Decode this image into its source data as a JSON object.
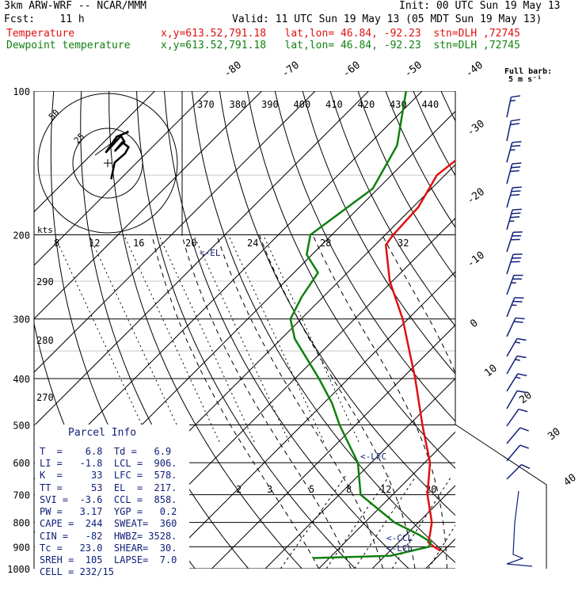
{
  "header": {
    "model": "3km ARW-WRF -- NCAR/MMM",
    "init": "Init: 00 UTC Sun 19 May 13",
    "fcst": "Fcst:    11 h",
    "valid": "Valid: 11 UTC Sun 19 May 13 (05 MDT Sun 19 May 13)",
    "temp_label": "Temperature",
    "temp_info": "x,y=613.52,791.18   lat,lon= 46.84, -92.23  stn=DLH ,72745",
    "dew_label": "Dewpoint temperature",
    "dew_info": "x,y=613.52,791.18   lat,lon= 46.84, -92.23  stn=DLH ,72745"
  },
  "barb_key": {
    "line1": "Full barb:",
    "line2": "5 m s⁻¹"
  },
  "hodograph": {
    "units": "kts",
    "ring_labels": [
      "25",
      "50"
    ]
  },
  "parcel": {
    "title": "Parcel Info",
    "rows": [
      "T  =    6.8  Td =   6.9",
      "LI =   -1.8  LCL =  906.",
      "K  =     33  LFC =  578.",
      "TT =     53  EL  =  217.",
      "SVI =  -3.6  CCL =  858.",
      "PW =   3.17  YGP =   0.2",
      "CAPE =  244  SWEAT=  360",
      "CIN =   -82  HWBZ= 3528.",
      "Tc =   23.0  SHEAR=  30.",
      "SREH =  105  LAPSE=  7.0",
      "CELL = 232/15"
    ]
  },
  "markers": {
    "el": "<-EL",
    "lfc": "<-LFC",
    "ccl": "<-CCL",
    "lcl": "<-LCL"
  },
  "colors": {
    "temperature": "#e01010",
    "dewpoint": "#108010",
    "barbs": "#10207a",
    "info": "#10207a"
  },
  "chart_data": {
    "type": "line",
    "title": "",
    "yscale": "log",
    "ylim": [
      1000,
      100
    ],
    "pressure_labels": [
      {
        "p": 100,
        "label": "100"
      },
      {
        "p": 200,
        "label": "200"
      },
      {
        "p": 300,
        "label": "300"
      },
      {
        "p": 400,
        "label": "400"
      },
      {
        "p": 500,
        "label": "500"
      },
      {
        "p": 600,
        "label": "600"
      },
      {
        "p": 700,
        "label": "700"
      },
      {
        "p": 800,
        "label": "800"
      },
      {
        "p": 900,
        "label": "900"
      },
      {
        "p": 1000,
        "label": "1000"
      }
    ],
    "isotherm_labels": [
      {
        "t": -80,
        "label": "-80"
      },
      {
        "t": -70,
        "label": "-70"
      },
      {
        "t": -60,
        "label": "-60"
      },
      {
        "t": -50,
        "label": "-50"
      },
      {
        "t": -40,
        "label": "-40"
      },
      {
        "t": -30,
        "label": "-30"
      },
      {
        "t": -20,
        "label": "-20"
      },
      {
        "t": -10,
        "label": "-10"
      },
      {
        "t": 0,
        "label": "0"
      },
      {
        "t": 10,
        "label": "10"
      },
      {
        "t": 20,
        "label": "20"
      },
      {
        "t": 30,
        "label": "30"
      },
      {
        "t": 40,
        "label": "40"
      }
    ],
    "theta_e_labels": [
      "370",
      "380",
      "390",
      "400",
      "410",
      "420",
      "430",
      "440"
    ],
    "mixing_upper_labels": [
      "8",
      "12",
      "16",
      "20",
      "24",
      "28",
      "32"
    ],
    "mixing_ratio_labels": [
      "2",
      "3",
      "5",
      "8",
      "12",
      "20"
    ],
    "theta_labels": [
      "290",
      "280",
      "270"
    ],
    "series": [
      {
        "name": "Temperature",
        "points": [
          {
            "p": 918,
            "t": 9.5
          },
          {
            "p": 900,
            "t": 7.5
          },
          {
            "p": 880,
            "t": 5.5
          },
          {
            "p": 850,
            "t": 4.5
          },
          {
            "p": 800,
            "t": 2.5
          },
          {
            "p": 700,
            "t": -3.5
          },
          {
            "p": 600,
            "t": -9.0
          },
          {
            "p": 500,
            "t": -17.5
          },
          {
            "p": 400,
            "t": -27.5
          },
          {
            "p": 300,
            "t": -41.0
          },
          {
            "p": 250,
            "t": -50.5
          },
          {
            "p": 210,
            "t": -58.0
          },
          {
            "p": 200,
            "t": -58.5
          },
          {
            "p": 175,
            "t": -59.0
          },
          {
            "p": 150,
            "t": -61.5
          },
          {
            "p": 130,
            "t": -60.0
          },
          {
            "p": 115,
            "t": -58.0
          },
          {
            "p": 100,
            "t": -58.0
          }
        ]
      },
      {
        "name": "Dewpoint temperature",
        "points": [
          {
            "p": 950,
            "t": -13.0
          },
          {
            "p": 940,
            "t": 1.0
          },
          {
            "p": 900,
            "t": 6.5
          },
          {
            "p": 880,
            "t": 6.0
          },
          {
            "p": 850,
            "t": 2.5
          },
          {
            "p": 800,
            "t": -4.5
          },
          {
            "p": 700,
            "t": -16.0
          },
          {
            "p": 600,
            "t": -22.5
          },
          {
            "p": 500,
            "t": -33.0
          },
          {
            "p": 450,
            "t": -38.5
          },
          {
            "p": 400,
            "t": -45.5
          },
          {
            "p": 330,
            "t": -57.5
          },
          {
            "p": 300,
            "t": -62.0
          },
          {
            "p": 270,
            "t": -64.0
          },
          {
            "p": 240,
            "t": -65.5
          },
          {
            "p": 220,
            "t": -71.0
          },
          {
            "p": 200,
            "t": -74.0
          },
          {
            "p": 160,
            "t": -71.0
          },
          {
            "p": 130,
            "t": -74.5
          },
          {
            "p": 100,
            "t": -83.0
          }
        ]
      }
    ],
    "hodograph_trace": [
      {
        "u": 0.5,
        "v": 0.2
      },
      {
        "u": 1.0,
        "v": 2.6
      },
      {
        "u": 2.5,
        "v": 3.9
      },
      {
        "u": 3.0,
        "v": 4.8
      },
      {
        "u": 2.1,
        "v": 5.5
      },
      {
        "u": 1.0,
        "v": 4.2
      },
      {
        "u": 2.4,
        "v": 5.6
      },
      {
        "u": 1.9,
        "v": 6.4
      },
      {
        "u": -0.3,
        "v": 4.0
      },
      {
        "u": 1.3,
        "v": 6.3
      },
      {
        "u": 3.0,
        "v": 7.0
      }
    ]
  }
}
